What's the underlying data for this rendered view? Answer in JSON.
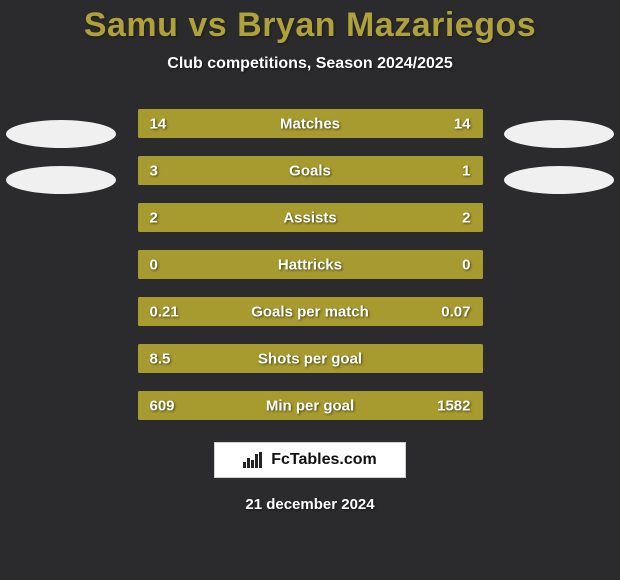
{
  "background_color": "#2b2a2d",
  "title": "Samu vs Bryan Mazariegos",
  "title_color": "#b0a23a",
  "subtitle": "Club competitions, Season 2024/2025",
  "date": "21 december 2024",
  "logo_text": "FcTables.com",
  "bar_colors": {
    "left": "#a79a2f",
    "right": "#a79a2f",
    "track": "#c0c0c0"
  },
  "text_color": "#ffffff",
  "badge_color": "#f0f0f0",
  "stats": [
    {
      "label": "Matches",
      "left_val": "14",
      "right_val": "14",
      "left_pct": 50,
      "right_pct": 50
    },
    {
      "label": "Goals",
      "left_val": "3",
      "right_val": "1",
      "left_pct": 75,
      "right_pct": 25
    },
    {
      "label": "Assists",
      "left_val": "2",
      "right_val": "2",
      "left_pct": 50,
      "right_pct": 50
    },
    {
      "label": "Hattricks",
      "left_val": "0",
      "right_val": "0",
      "left_pct": 50,
      "right_pct": 50
    },
    {
      "label": "Goals per match",
      "left_val": "0.21",
      "right_val": "0.07",
      "left_pct": 75,
      "right_pct": 25
    },
    {
      "label": "Shots per goal",
      "left_val": "8.5",
      "right_val": "",
      "left_pct": 100,
      "right_pct": 0
    },
    {
      "label": "Min per goal",
      "left_val": "609",
      "right_val": "1582",
      "left_pct": 27.8,
      "right_pct": 72.2
    }
  ]
}
